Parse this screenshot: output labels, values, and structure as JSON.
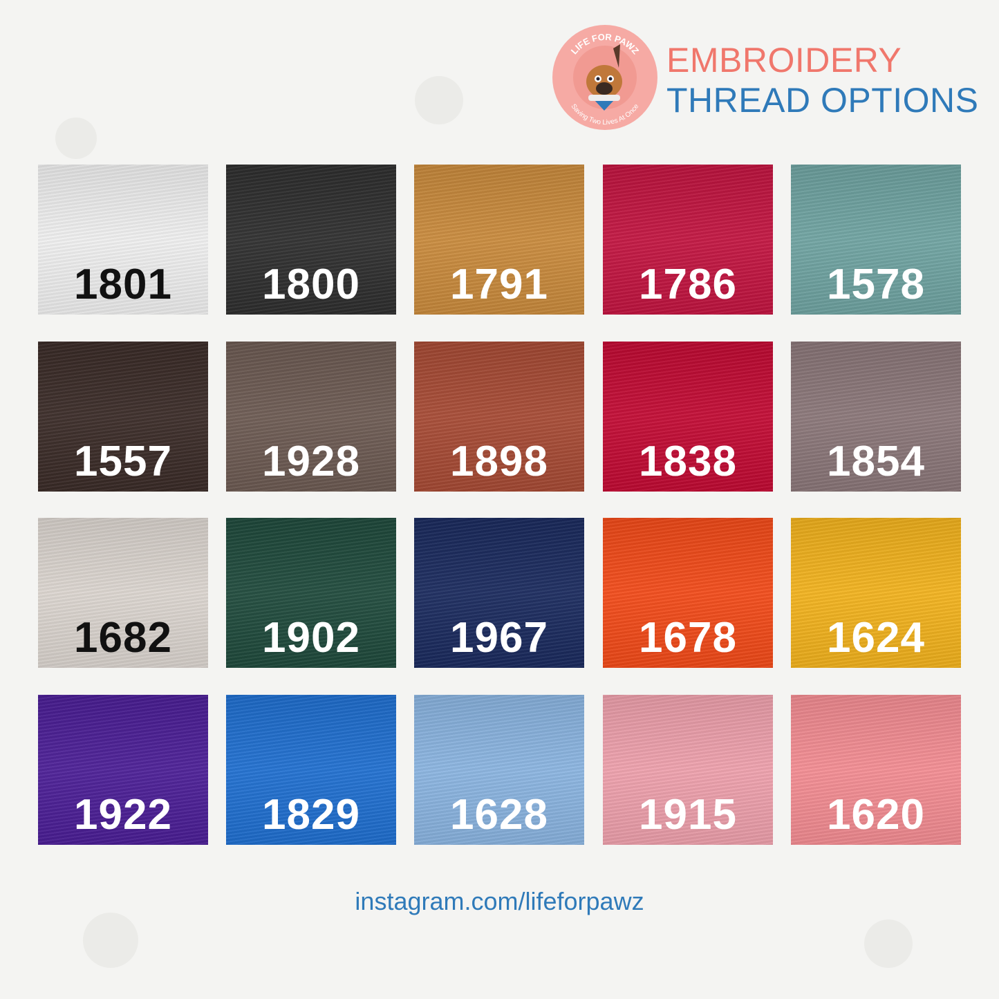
{
  "logo": {
    "top_text": "LIFE FOR PAWZ",
    "bottom_text": "Saving Two Lives At Once",
    "bone_text": "LIFE FOR PAWZ"
  },
  "title": {
    "line1": "EMBROIDERY",
    "line2": "THREAD OPTIONS",
    "line1_color": "#f0776c",
    "line2_color": "#2f7ab9"
  },
  "swatches": [
    {
      "code": "1801",
      "color": "#efefef",
      "text": "dark"
    },
    {
      "code": "1800",
      "color": "#2e2e2e",
      "text": "light"
    },
    {
      "code": "1791",
      "color": "#c98a3c",
      "text": "light"
    },
    {
      "code": "1786",
      "color": "#c21440",
      "text": "light"
    },
    {
      "code": "1578",
      "color": "#6fa3a1",
      "text": "light"
    },
    {
      "code": "1557",
      "color": "#3a2b27",
      "text": "light"
    },
    {
      "code": "1928",
      "color": "#6c5a52",
      "text": "light"
    },
    {
      "code": "1898",
      "color": "#a64a34",
      "text": "light"
    },
    {
      "code": "1838",
      "color": "#c20a33",
      "text": "light"
    },
    {
      "code": "1854",
      "color": "#8a7678",
      "text": "light"
    },
    {
      "code": "1682",
      "color": "#dbd5cf",
      "text": "dark"
    },
    {
      "code": "1902",
      "color": "#1f4a3c",
      "text": "light"
    },
    {
      "code": "1967",
      "color": "#1a2a5e",
      "text": "light"
    },
    {
      "code": "1678",
      "color": "#f24a18",
      "text": "light"
    },
    {
      "code": "1624",
      "color": "#f2b21c",
      "text": "light"
    },
    {
      "code": "1922",
      "color": "#4b1e96",
      "text": "light"
    },
    {
      "code": "1829",
      "color": "#1f6fd0",
      "text": "light"
    },
    {
      "code": "1628",
      "color": "#8ab4e0",
      "text": "light"
    },
    {
      "code": "1915",
      "color": "#eea0ac",
      "text": "light"
    },
    {
      "code": "1620",
      "color": "#f38c92",
      "text": "light"
    }
  ],
  "footer": {
    "link": "instagram.com/lifeforpawz"
  }
}
